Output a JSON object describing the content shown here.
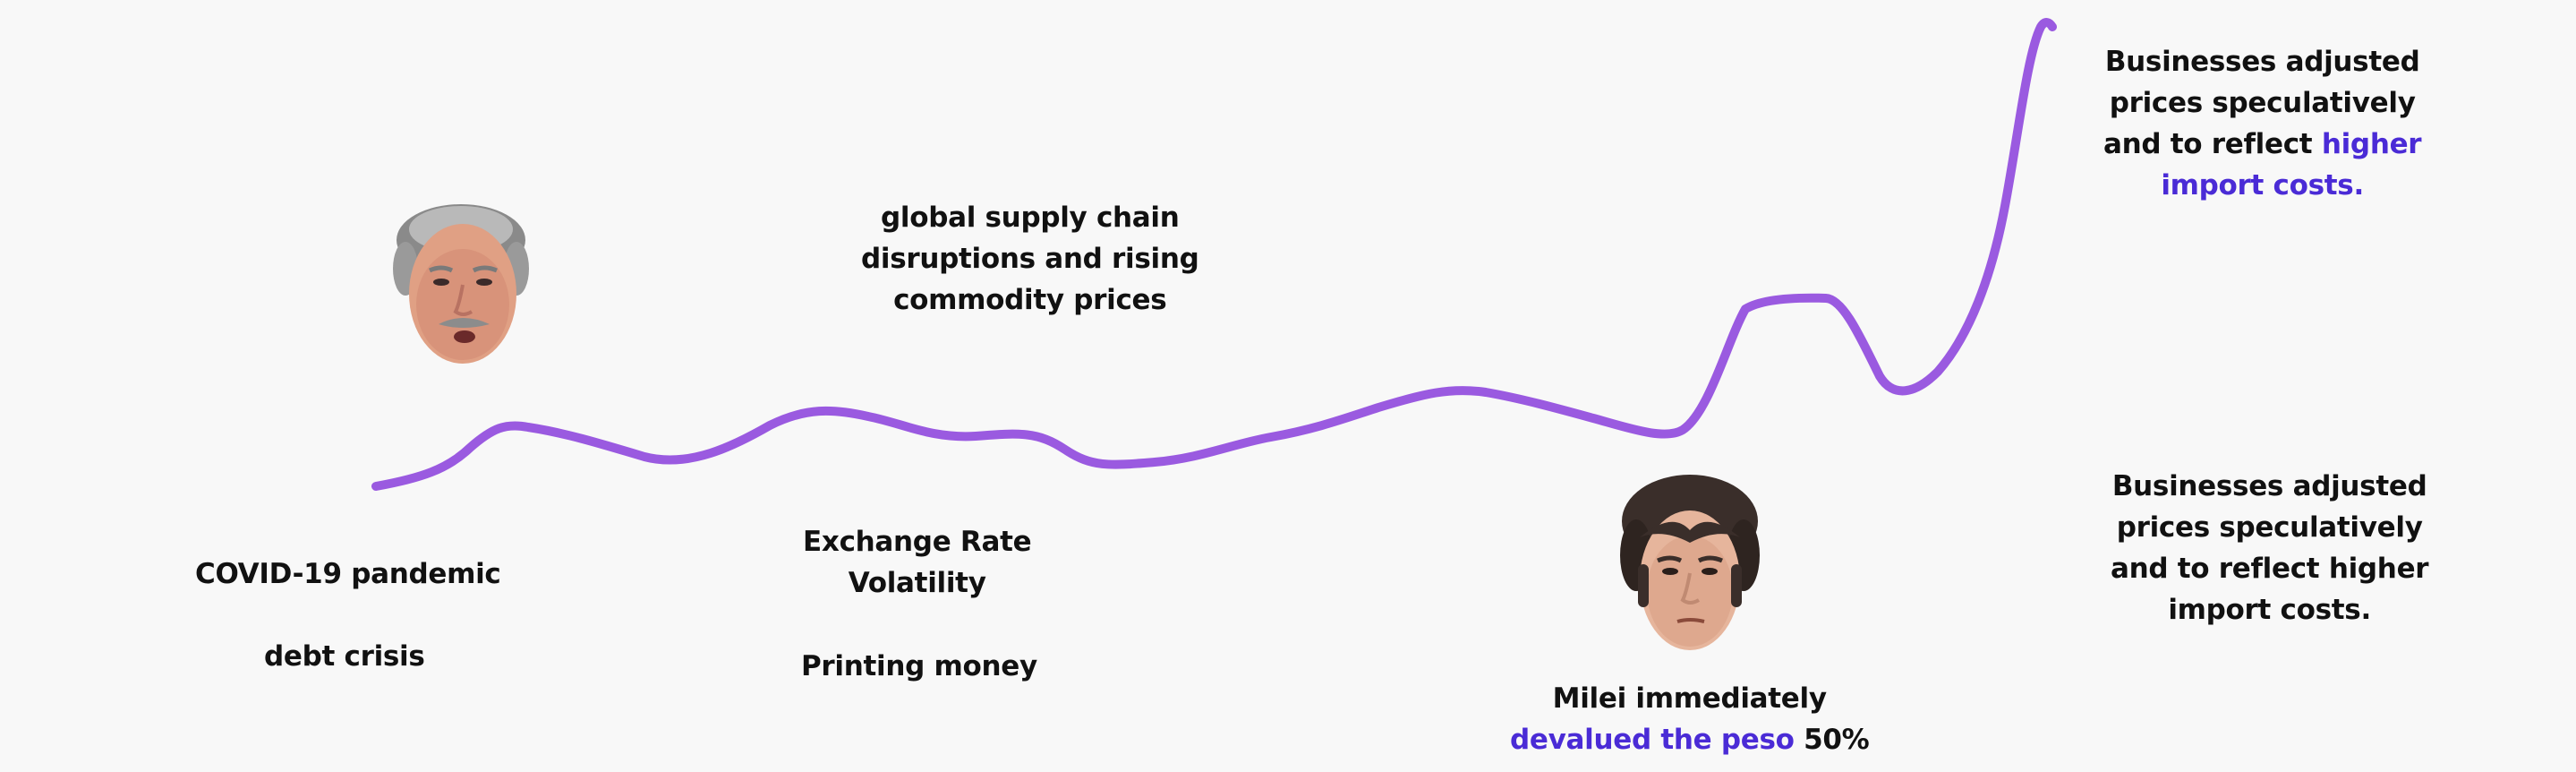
{
  "colors": {
    "background": "#f8f8f8",
    "line": "#9a5ae0",
    "text": "#111111",
    "accent": "#4a2bd6"
  },
  "portraits": {
    "left": "portrait-icon",
    "right": "portrait-icon"
  },
  "labels": {
    "covid": "COVID-19 pandemic",
    "debt": "debt crisis",
    "supply": {
      "l1": "global supply chain",
      "l2": "disruptions and rising",
      "l3": "commodity prices"
    },
    "exchange": {
      "l1": "Exchange Rate",
      "l2": "Volatility"
    },
    "printing": "Printing money",
    "milei": {
      "l1": "Milei immediately",
      "accent": "devalued the peso",
      "rest": " 50%"
    },
    "top_right": {
      "l1": "Businesses adjusted",
      "l2": "prices speculatively",
      "l3_pre": "and to reflect ",
      "l3_accent": "higher",
      "l4_accent": "import costs."
    },
    "bottom_right": {
      "l1": "Businesses adjusted",
      "l2": "prices speculatively",
      "l3": "and  to reflect higher",
      "l4": "import costs."
    }
  }
}
